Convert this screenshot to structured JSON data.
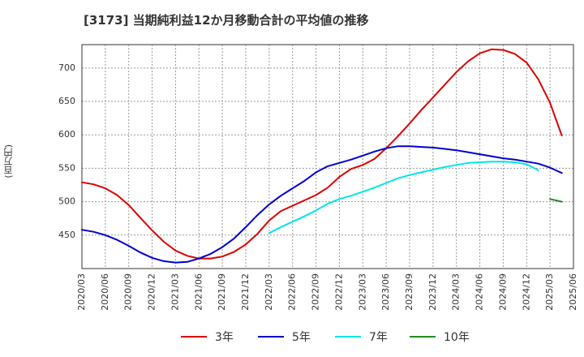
{
  "chart_data": {
    "type": "line",
    "title": "[3173]  当期純利益12か月移動合計の平均値の推移",
    "ylabel": "(百万円)",
    "ylim": [
      400,
      735
    ],
    "yticks": [
      450,
      500,
      550,
      600,
      650,
      700
    ],
    "xticks": [
      "2020/03",
      "2020/06",
      "2020/09",
      "2020/12",
      "2021/03",
      "2021/06",
      "2021/09",
      "2021/12",
      "2022/03",
      "2022/06",
      "2022/09",
      "2022/12",
      "2023/03",
      "2023/06",
      "2023/09",
      "2023/12",
      "2024/03",
      "2024/06",
      "2024/09",
      "2024/12",
      "2025/03",
      "2025/06"
    ],
    "grid": true,
    "legend_position": "bottom",
    "series": [
      {
        "name": "3年",
        "color": "#dd0000",
        "start_index": 0,
        "values": [
          529,
          526,
          520,
          510,
          495,
          476,
          457,
          440,
          427,
          419,
          415,
          415,
          418,
          425,
          436,
          452,
          472,
          486,
          494,
          502,
          510,
          521,
          537,
          549,
          555,
          564,
          580,
          598,
          617,
          637,
          656,
          675,
          694,
          710,
          722,
          728,
          727,
          721,
          708,
          683,
          648,
          599
        ]
      },
      {
        "name": "5年",
        "color": "#0000cc",
        "start_index": 0,
        "values": [
          458,
          455,
          450,
          443,
          434,
          424,
          416,
          411,
          409,
          410,
          415,
          422,
          432,
          445,
          462,
          480,
          496,
          509,
          520,
          531,
          544,
          553,
          558,
          563,
          569,
          575,
          580,
          583,
          583,
          582,
          581,
          579,
          577,
          574,
          571,
          568,
          565,
          563,
          560,
          557,
          551,
          543
        ]
      },
      {
        "name": "7年",
        "color": "#00e5e5",
        "start_index": 16,
        "values": [
          453,
          462,
          470,
          478,
          487,
          497,
          504,
          509,
          515,
          521,
          528,
          535,
          540,
          544,
          548,
          552,
          555,
          558,
          559,
          560,
          560,
          559,
          556,
          547
        ]
      },
      {
        "name": "10年",
        "color": "#228b22",
        "start_index": 40,
        "values": [
          504,
          500
        ]
      }
    ]
  }
}
